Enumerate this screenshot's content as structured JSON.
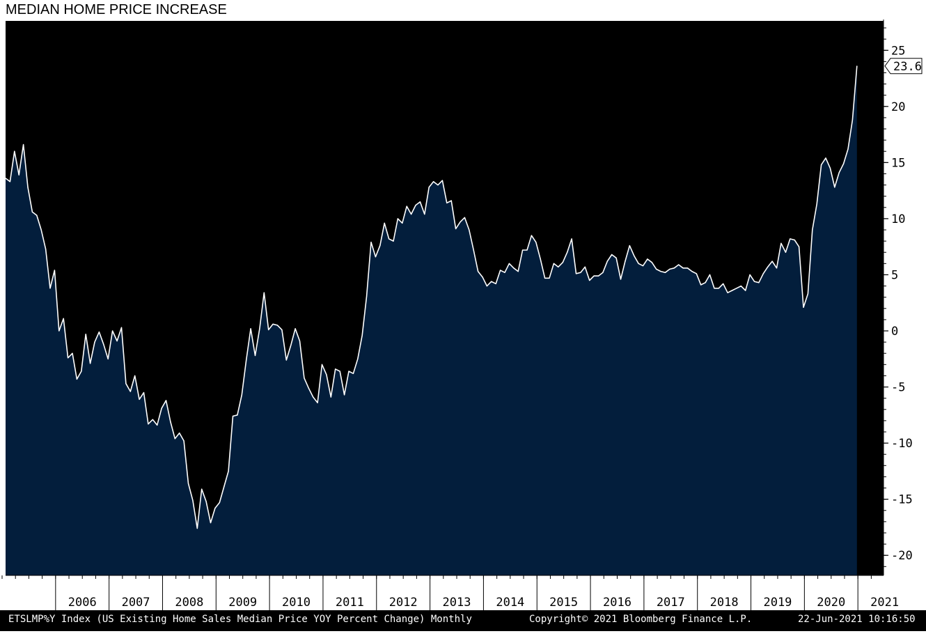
{
  "title": "MEDIAN HOME PRICE INCREASE",
  "footer": {
    "ticker": "ETSLMP%Y Index (US Existing Home Sales Median Price YOY Percent Change)  Monthly",
    "copyright": "Copyright© 2021 Bloomberg Finance L.P.",
    "timestamp": "22-Jun-2021 10:16:50"
  },
  "colors": {
    "background": "#000000",
    "area_fill": "#031e3c",
    "line": "#ffffff",
    "axis_text": "#ffffff"
  },
  "chart_data": {
    "type": "area",
    "title": "MEDIAN HOME PRICE INCREASE",
    "xlabel": "",
    "ylabel": "",
    "frequency": "monthly",
    "x_start": "2005-01",
    "x_end": "2021-05",
    "year_ticks": [
      "2006",
      "2007",
      "2008",
      "2009",
      "2010",
      "2011",
      "2012",
      "2013",
      "2014",
      "2015",
      "2016",
      "2017",
      "2018",
      "2019",
      "2020",
      "2021"
    ],
    "y_ticks": [
      25,
      20,
      15,
      10,
      5,
      0,
      -5,
      -10,
      -15,
      -20
    ],
    "ylim": [
      -22,
      27.5
    ],
    "last_value_label": "23.6",
    "grid": false,
    "series": [
      {
        "values": [
          13.6,
          13.3,
          16.0,
          13.9,
          16.6,
          12.8,
          10.6,
          10.3,
          9.0,
          7.3,
          3.8,
          5.4,
          0.0,
          1.1,
          -2.4,
          -2.0,
          -4.3,
          -3.6,
          -0.3,
          -2.9,
          -1.0,
          -0.1,
          -1.2,
          -2.5,
          0.0,
          -0.9,
          0.3,
          -4.7,
          -5.4,
          -4.0,
          -6.1,
          -5.5,
          -8.3,
          -7.9,
          -8.4,
          -6.9,
          -6.2,
          -8.1,
          -9.6,
          -9.1,
          -9.8,
          -13.6,
          -15.1,
          -17.6,
          -14.1,
          -15.2,
          -17.1,
          -15.8,
          -15.3,
          -13.9,
          -12.5,
          -7.6,
          -7.5,
          -5.7,
          -2.6,
          0.2,
          -2.2,
          0.2,
          3.4,
          0.1,
          0.6,
          0.5,
          0.1,
          -2.6,
          -1.3,
          0.2,
          -0.9,
          -4.2,
          -5.1,
          -5.9,
          -6.4,
          -3.0,
          -3.9,
          -5.9,
          -3.4,
          -3.6,
          -5.7,
          -3.6,
          -3.8,
          -2.5,
          -0.4,
          3.1,
          7.9,
          6.6,
          7.6,
          9.6,
          8.2,
          8.0,
          10.0,
          9.6,
          11.1,
          10.4,
          11.2,
          11.5,
          10.4,
          12.8,
          13.3,
          13.0,
          13.4,
          11.4,
          11.6,
          9.1,
          9.7,
          10.1,
          9.0,
          7.2,
          5.3,
          4.8,
          4.0,
          4.4,
          4.2,
          5.4,
          5.2,
          6.0,
          5.6,
          5.3,
          7.2,
          7.2,
          8.5,
          7.9,
          6.4,
          4.7,
          4.7,
          6.0,
          5.7,
          6.1,
          7.0,
          8.2,
          5.1,
          5.2,
          5.7,
          4.5,
          4.9,
          4.9,
          5.2,
          6.2,
          6.8,
          6.5,
          4.6,
          6.2,
          7.6,
          6.7,
          6.0,
          5.8,
          6.4,
          6.1,
          5.5,
          5.3,
          5.2,
          5.5,
          5.6,
          5.9,
          5.6,
          5.6,
          5.3,
          5.1,
          4.1,
          4.3,
          5.0,
          3.8,
          3.8,
          4.2,
          3.4,
          3.6,
          3.8,
          4.0,
          3.6,
          5.0,
          4.4,
          4.3,
          5.1,
          5.7,
          6.2,
          5.6,
          7.8,
          7.0,
          8.2,
          8.1,
          7.5,
          2.1,
          3.3,
          9.0,
          11.3,
          14.8,
          15.4,
          14.5,
          12.8,
          14.1,
          14.9,
          16.2,
          18.8,
          23.6
        ]
      }
    ]
  }
}
